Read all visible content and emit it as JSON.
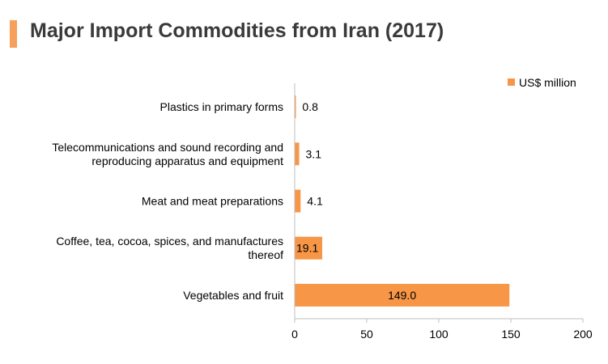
{
  "title": "Major Import Commodities from Iran (2017)",
  "accent_color": "#f5a05c",
  "chart_data": {
    "type": "bar",
    "orientation": "horizontal",
    "categories": [
      [
        "Plastics in primary forms"
      ],
      [
        "Telecommunications and sound recording and",
        "reproducing apparatus and equipment"
      ],
      [
        "Meat and meat preparations"
      ],
      [
        "Coffee, tea, cocoa, spices, and manufactures",
        "thereof"
      ],
      [
        "Vegetables and fruit"
      ]
    ],
    "series": [
      {
        "name": "US$ million",
        "values": [
          0.8,
          3.1,
          4.1,
          19.1,
          149.0
        ],
        "color": "#f79646"
      }
    ],
    "data_labels": [
      "0.8",
      "3.1",
      "4.1",
      "19.1",
      "149.0"
    ],
    "xlim": [
      0,
      200
    ],
    "xticks": [
      "0",
      "50",
      "100",
      "150",
      "200"
    ],
    "legend_position": "top-right",
    "grid": false
  }
}
